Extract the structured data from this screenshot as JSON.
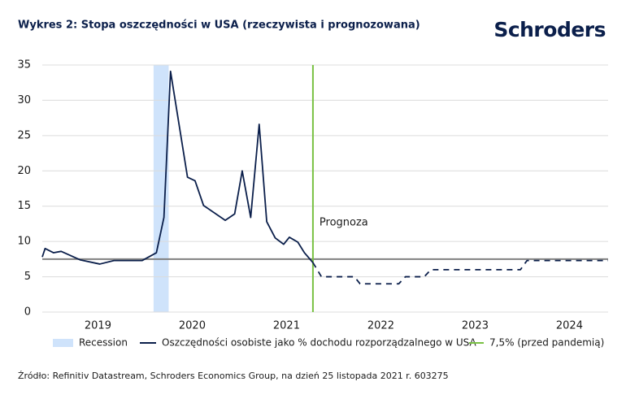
{
  "chart_data": {
    "type": "line",
    "title": "Wykres 2: Stopa oszczędności w USA (rzeczywista i prognozowana)",
    "brand": "Schroders",
    "source": "Źródło: Refinitiv Datastream, Schroders Economics Group, na dzień 25 listopada 2021 r. 603275",
    "annotation": "Prognoza",
    "xlim": [
      2018.91,
      2024.91
    ],
    "xticks": [
      {
        "value": 2019.5,
        "label": "2019"
      },
      {
        "value": 2020.5,
        "label": "2020"
      },
      {
        "value": 2021.5,
        "label": "2021"
      },
      {
        "value": 2022.5,
        "label": "2022"
      },
      {
        "value": 2023.5,
        "label": "2023"
      },
      {
        "value": 2024.5,
        "label": "2024"
      }
    ],
    "ylim": [
      0,
      35
    ],
    "yticks": [
      0,
      5,
      10,
      15,
      20,
      25,
      30,
      35
    ],
    "grid": true,
    "recession": {
      "name": "Recession",
      "start": 2020.09,
      "end": 2020.25,
      "color": "#cfe3fb"
    },
    "forecast_from": 2021.78,
    "forecast_color": "#79c143",
    "reference_line": {
      "name": "7,5% (przed pandemią)",
      "value": 7.5,
      "color": "#79c143",
      "line_color": "#808080"
    },
    "series": [
      {
        "name": "Oszczędności osobiste jako % dochodu rozporządzalnego w USA",
        "color": "#0b1f4b",
        "x": [
          2018.91,
          2018.94,
          2019.03,
          2019.11,
          2019.31,
          2019.52,
          2019.67,
          2019.97,
          2020.12,
          2020.2,
          2020.27,
          2020.45,
          2020.53,
          2020.62,
          2020.85,
          2020.95,
          2021.03,
          2021.12,
          2021.21,
          2021.29,
          2021.38,
          2021.47,
          2021.53,
          2021.62,
          2021.69,
          2021.78,
          2021.87,
          2022.22,
          2022.28,
          2022.69,
          2022.76,
          2022.96,
          2023.03,
          2023.98,
          2024.05,
          2024.91
        ],
        "values": [
          7.8,
          9.0,
          8.4,
          8.6,
          7.4,
          6.8,
          7.3,
          7.3,
          8.4,
          13.4,
          34.1,
          19.1,
          18.6,
          15.1,
          13.0,
          13.9,
          20.0,
          13.4,
          26.6,
          12.8,
          10.5,
          9.6,
          10.6,
          9.9,
          8.4,
          7.0,
          5,
          5,
          4,
          4,
          5,
          5,
          6,
          6,
          7.3,
          7.3
        ]
      }
    ]
  }
}
